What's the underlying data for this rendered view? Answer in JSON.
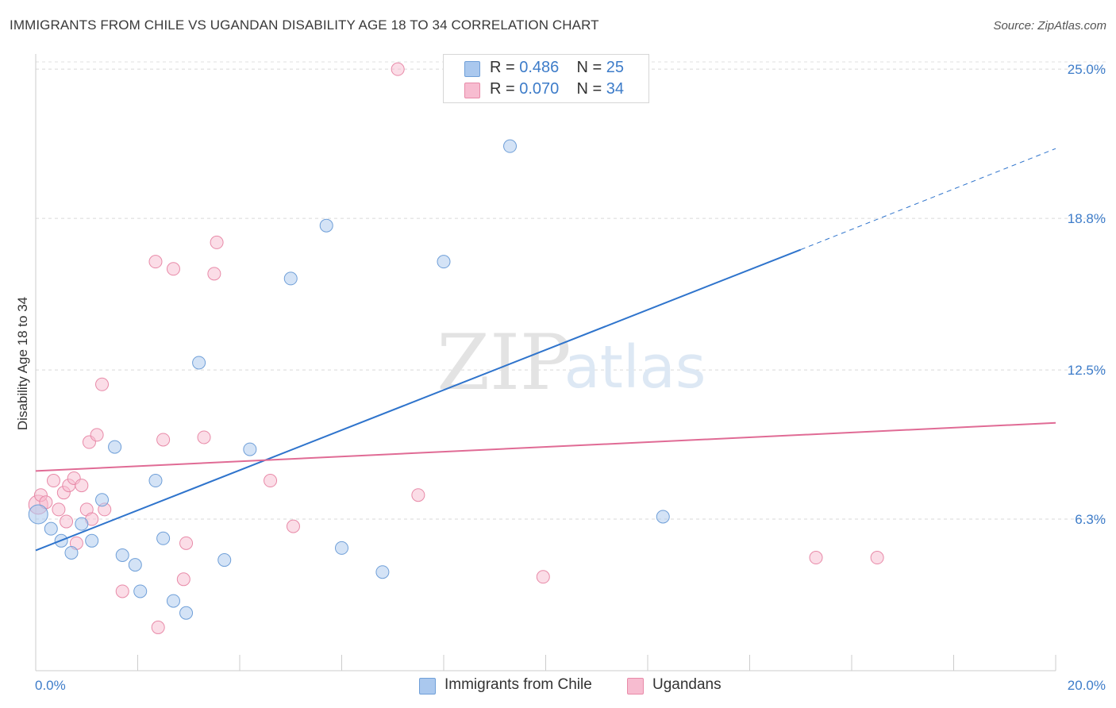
{
  "title": "IMMIGRANTS FROM CHILE VS UGANDAN DISABILITY AGE 18 TO 34 CORRELATION CHART",
  "source": "Source: ZipAtlas.com",
  "watermark": {
    "zip": "ZIP",
    "atlas": "atlas"
  },
  "legend_stats": [
    {
      "r_label": "R =",
      "r_value": "0.486",
      "n_label": "N =",
      "n_value": "25",
      "color": "#aac8ee",
      "border": "#6f9fd8"
    },
    {
      "r_label": "R =",
      "r_value": "0.070",
      "n_label": "N =",
      "n_value": "34",
      "color": "#f7bcd0",
      "border": "#e88aa8"
    }
  ],
  "chart_data": {
    "type": "scatter",
    "title": "IMMIGRANTS FROM CHILE VS UGANDAN DISABILITY AGE 18 TO 34 CORRELATION CHART",
    "xlabel": "",
    "ylabel": "Disability Age 18 to 34",
    "xlim": [
      0,
      20
    ],
    "ylim": [
      0,
      25.5
    ],
    "x_tick_labels": [
      "0.0%",
      "20.0%"
    ],
    "y_ticks": [
      6.3,
      12.5,
      18.8,
      25.0
    ],
    "y_tick_labels": [
      "6.3%",
      "12.5%",
      "18.8%",
      "25.0%"
    ],
    "grid": true,
    "legend_position": "bottom-center",
    "series": [
      {
        "name": "Immigrants from Chile",
        "color": "#aac8ee",
        "stroke": "#6f9fd8",
        "trend_color": "#2f74cc",
        "trend": {
          "x0": 0,
          "y0": 5.0,
          "x1": 15.0,
          "y1": 17.5,
          "dashed_to_x": 20,
          "dashed_to_y": 21.7
        },
        "points": [
          [
            0.05,
            6.5
          ],
          [
            0.3,
            5.9
          ],
          [
            0.5,
            5.4
          ],
          [
            0.7,
            4.9
          ],
          [
            0.9,
            6.1
          ],
          [
            1.1,
            5.4
          ],
          [
            1.3,
            7.1
          ],
          [
            1.55,
            9.3
          ],
          [
            1.7,
            4.8
          ],
          [
            1.95,
            4.4
          ],
          [
            2.05,
            3.3
          ],
          [
            2.35,
            7.9
          ],
          [
            2.5,
            5.5
          ],
          [
            2.7,
            2.9
          ],
          [
            2.95,
            2.4
          ],
          [
            3.2,
            12.8
          ],
          [
            3.7,
            4.6
          ],
          [
            4.2,
            9.2
          ],
          [
            5.0,
            16.3
          ],
          [
            5.7,
            18.5
          ],
          [
            6.0,
            5.1
          ],
          [
            6.8,
            4.1
          ],
          [
            8.0,
            17.0
          ],
          [
            9.3,
            21.8
          ],
          [
            12.3,
            6.4
          ]
        ]
      },
      {
        "name": "Ugandans",
        "color": "#f7bcd0",
        "stroke": "#e88aa8",
        "trend_color": "#e06b95",
        "trend": {
          "x0": 0,
          "y0": 8.3,
          "x1": 20,
          "y1": 10.3
        },
        "points": [
          [
            0.05,
            6.9
          ],
          [
            0.1,
            7.3
          ],
          [
            0.2,
            7.0
          ],
          [
            0.35,
            7.9
          ],
          [
            0.45,
            6.7
          ],
          [
            0.55,
            7.4
          ],
          [
            0.6,
            6.2
          ],
          [
            0.65,
            7.7
          ],
          [
            0.75,
            8.0
          ],
          [
            0.8,
            5.3
          ],
          [
            0.9,
            7.7
          ],
          [
            1.0,
            6.7
          ],
          [
            1.05,
            9.5
          ],
          [
            1.1,
            6.3
          ],
          [
            1.2,
            9.8
          ],
          [
            1.3,
            11.9
          ],
          [
            1.35,
            6.7
          ],
          [
            1.7,
            3.3
          ],
          [
            2.35,
            17.0
          ],
          [
            2.4,
            1.8
          ],
          [
            2.5,
            9.6
          ],
          [
            2.7,
            16.7
          ],
          [
            2.9,
            3.8
          ],
          [
            2.95,
            5.3
          ],
          [
            3.3,
            9.7
          ],
          [
            3.5,
            16.5
          ],
          [
            3.55,
            17.8
          ],
          [
            4.6,
            7.9
          ],
          [
            5.05,
            6.0
          ],
          [
            7.1,
            25.0
          ],
          [
            7.5,
            7.3
          ],
          [
            9.95,
            3.9
          ],
          [
            15.3,
            4.7
          ],
          [
            16.5,
            4.7
          ]
        ]
      }
    ]
  }
}
